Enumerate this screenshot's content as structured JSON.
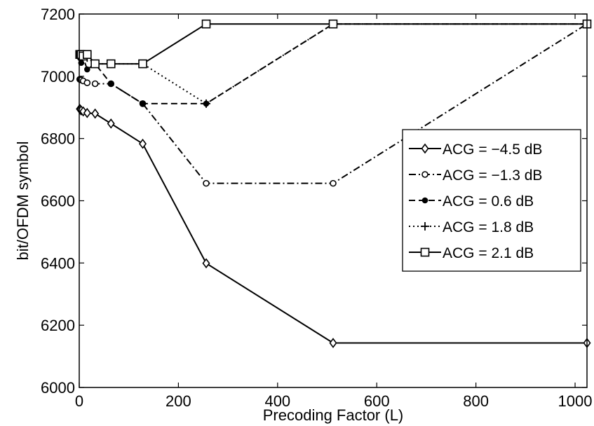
{
  "chart_data": {
    "type": "line",
    "title": "",
    "xlabel": "Precoding Factor (L)",
    "ylabel": "bit/OFDM symbol",
    "xlim": [
      0,
      1024
    ],
    "ylim": [
      6000,
      7200
    ],
    "xticks": [
      0,
      200,
      400,
      600,
      800,
      1000
    ],
    "yticks": [
      6000,
      6200,
      6400,
      6600,
      6800,
      7000,
      7200
    ],
    "grid": false,
    "legend_position": "right",
    "series": [
      {
        "name": "ACG = −4.5 dB",
        "style": "solid",
        "marker": "diamond",
        "x": [
          1,
          2,
          4,
          8,
          16,
          32,
          64,
          128,
          256,
          512,
          1024
        ],
        "y": [
          6895,
          6893,
          6890,
          6887,
          6882,
          6880,
          6848,
          6783,
          6399,
          6143,
          6143
        ]
      },
      {
        "name": "ACG = −1.3 dB",
        "style": "dashdot",
        "marker": "circle",
        "x": [
          1,
          2,
          4,
          8,
          16,
          32,
          64,
          128,
          256,
          512,
          1024
        ],
        "y": [
          6990,
          6990,
          6988,
          6985,
          6979,
          6976,
          6976,
          6912,
          6656,
          6656,
          7168
        ]
      },
      {
        "name": "ACG = 0.6 dB",
        "style": "dashed",
        "marker": "dot",
        "x": [
          1,
          2,
          4,
          8,
          16,
          32,
          64,
          128,
          256,
          512,
          1024
        ],
        "y": [
          7070,
          7058,
          7043,
          7060,
          7022,
          7040,
          6976,
          6912,
          6912,
          7168,
          7168
        ]
      },
      {
        "name": "ACG = 1.8 dB",
        "style": "dotted",
        "marker": "plus",
        "x": [
          1,
          2,
          4,
          8,
          16,
          32,
          64,
          128,
          256,
          512,
          1024
        ],
        "y": [
          7070,
          7070,
          7070,
          7070,
          7060,
          7040,
          7040,
          7040,
          6912,
          7168,
          7168
        ]
      },
      {
        "name": "ACG = 2.1 dB",
        "style": "solid",
        "marker": "square",
        "x": [
          1,
          2,
          4,
          8,
          16,
          32,
          64,
          128,
          256,
          512,
          1024
        ],
        "y": [
          7070,
          7070,
          7070,
          7065,
          7070,
          7040,
          7040,
          7040,
          7168,
          7168,
          7168
        ]
      }
    ]
  }
}
